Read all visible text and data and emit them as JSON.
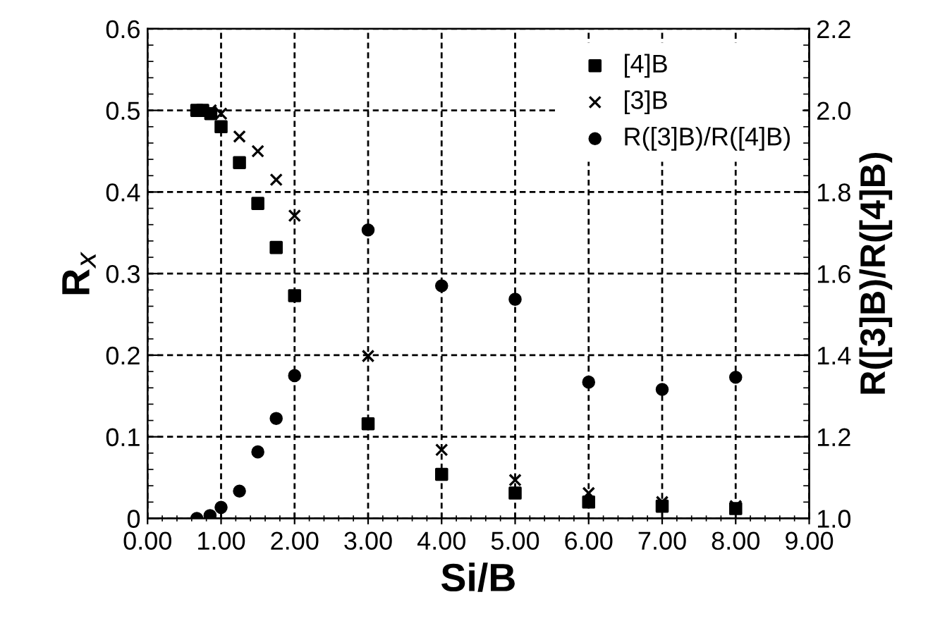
{
  "chart_data": {
    "type": "scatter",
    "xlabel": "Si/B",
    "ylabel": "R$_{x}$",
    "y2label": "R([3]B)/R([4]B)",
    "xlim": [
      0,
      9
    ],
    "xticks": [
      {
        "value": 0,
        "label": "0.00"
      },
      {
        "value": 1,
        "label": "1.00"
      },
      {
        "value": 2,
        "label": "2.00"
      },
      {
        "value": 3,
        "label": "3.00"
      },
      {
        "value": 4,
        "label": "4.00"
      },
      {
        "value": 5,
        "label": "5.00"
      },
      {
        "value": 6,
        "label": "6.00"
      },
      {
        "value": 7,
        "label": "7.00"
      },
      {
        "value": 8,
        "label": "8.00"
      },
      {
        "value": 9,
        "label": "9.00"
      }
    ],
    "ylim": [
      0,
      0.6
    ],
    "yticks": [
      0,
      0.1,
      0.2,
      0.3,
      0.4,
      0.5,
      0.6
    ],
    "y2lim": [
      1.0,
      2.2
    ],
    "y2ticks": [
      {
        "value": 1.0,
        "label": "1.0"
      },
      {
        "value": 1.2,
        "label": "1.2"
      },
      {
        "value": 1.4,
        "label": "1.4"
      },
      {
        "value": 1.6,
        "label": "1.6"
      },
      {
        "value": 1.8,
        "label": "1.8"
      },
      {
        "value": 2.0,
        "label": "2.0"
      },
      {
        "value": 2.2,
        "label": "2.2"
      }
    ],
    "grid": true,
    "legend": "top right",
    "series": [
      {
        "name": "[4]B",
        "color": "#000000",
        "marker": "square",
        "x": [
          0.67,
          0.75,
          0.86,
          1,
          1.25,
          1.5,
          1.75,
          2,
          3,
          4,
          5,
          6,
          7,
          8
        ],
        "values": [
          0.5,
          0.5,
          0.496,
          0.48,
          0.436,
          0.386,
          0.332,
          0.273,
          0.116,
          0.054,
          0.031,
          0.02,
          0.015,
          0.012
        ]
      },
      {
        "name": "[3]B",
        "color": "#000000",
        "marker": "cross",
        "x": [
          0.86,
          1,
          1.25,
          1.5,
          1.75,
          2,
          3,
          4,
          5,
          6,
          7,
          8
        ],
        "values": [
          0.5,
          0.496,
          0.468,
          0.45,
          0.415,
          0.371,
          0.199,
          0.084,
          0.047,
          0.031,
          0.02,
          0.015
        ]
      },
      {
        "name": "R([3]B)/R([4]B)",
        "color": "#000000",
        "marker": "circle",
        "axis": "y2",
        "x": [
          0.67,
          0.85,
          1,
          1.25,
          1.5,
          1.75,
          2,
          3,
          4,
          5,
          6,
          7,
          8
        ],
        "values": [
          1.0,
          1.007,
          1.027,
          1.067,
          1.163,
          1.245,
          1.35,
          1.707,
          1.57,
          1.537,
          1.334,
          1.316,
          1.346
        ]
      }
    ]
  }
}
